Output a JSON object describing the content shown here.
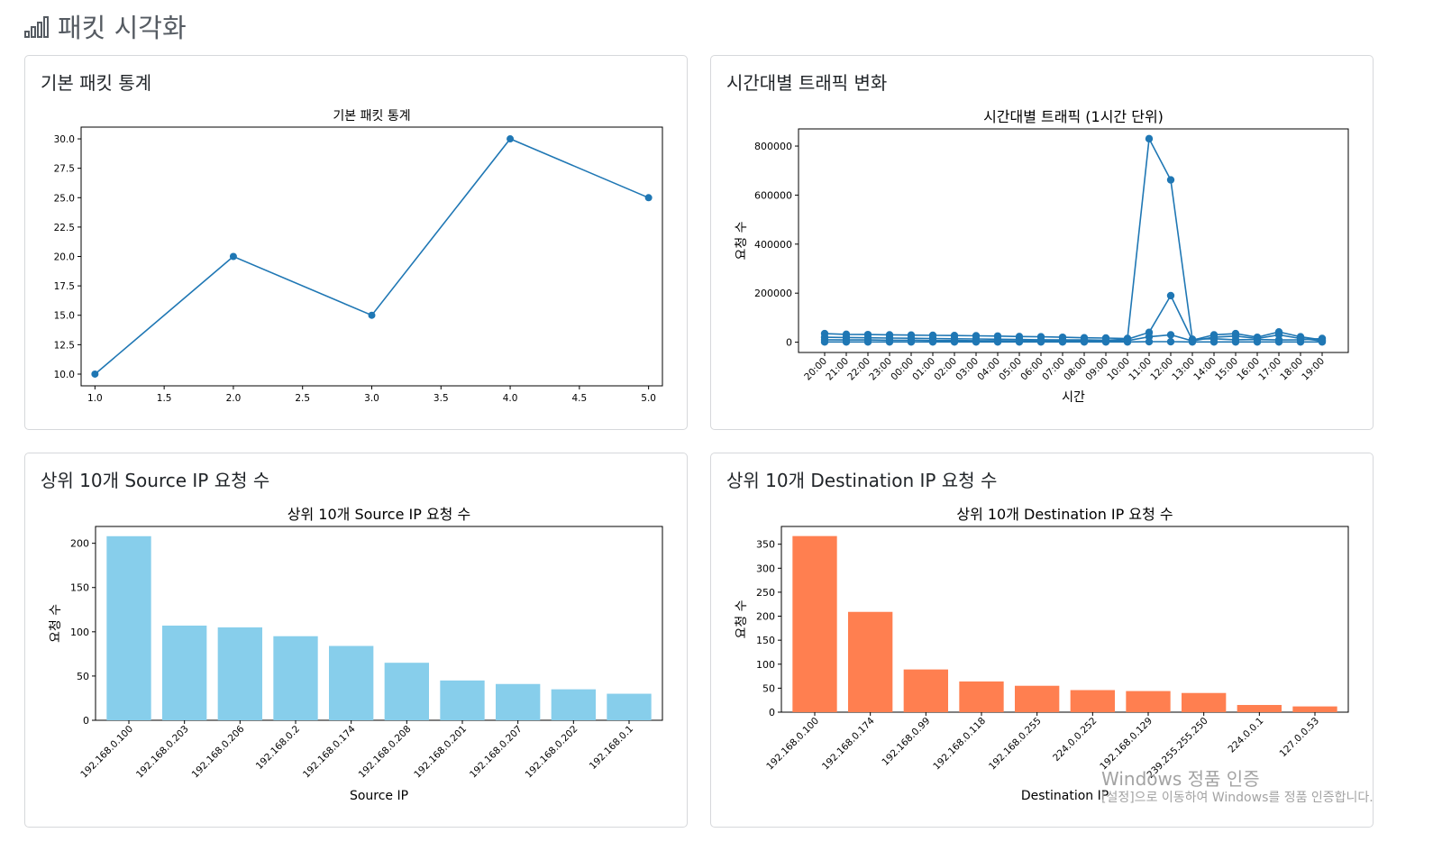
{
  "page": {
    "title": "패킷 시각화",
    "icon": "bar-chart-icon"
  },
  "cards": [
    {
      "title": "기본 패킷 통계"
    },
    {
      "title": "시간대별 트래픽 변화"
    },
    {
      "title": "상위 10개 Source IP 요청 수"
    },
    {
      "title": "상위 10개 Destination IP 요청 수"
    }
  ],
  "watermark": {
    "line1": "Windows 정품 인증",
    "line2": "[설정]으로 이동하여 Windows를 정품 인증합니다."
  },
  "chart_data": [
    {
      "type": "line",
      "title": "기본 패킷 통계",
      "xlabel": "",
      "ylabel": "",
      "x": [
        1,
        2,
        3,
        4,
        5
      ],
      "y": [
        10,
        20,
        15,
        30,
        25
      ],
      "xlim": [
        0.9,
        5.1
      ],
      "ylim": [
        9.0,
        31.0
      ],
      "xticks": [
        1.0,
        1.5,
        2.0,
        2.5,
        3.0,
        3.5,
        4.0,
        4.5,
        5.0
      ],
      "yticks": [
        10.0,
        12.5,
        15.0,
        17.5,
        20.0,
        22.5,
        25.0,
        27.5,
        30.0
      ],
      "color": "#1f77b4",
      "markers": true,
      "grid": false
    },
    {
      "type": "line",
      "title": "시간대별 트래픽 (1시간 단위)",
      "xlabel": "시간",
      "ylabel": "요청 수",
      "categories": [
        "20:00",
        "21:00",
        "22:00",
        "23:00",
        "00:00",
        "01:00",
        "02:00",
        "03:00",
        "04:00",
        "05:00",
        "06:00",
        "07:00",
        "08:00",
        "09:00",
        "10:00",
        "11:00",
        "12:00",
        "13:00",
        "14:00",
        "15:00",
        "16:00",
        "17:00",
        "18:00",
        "19:00"
      ],
      "ylim": [
        -42000,
        870000
      ],
      "yticks": [
        0,
        200000,
        400000,
        600000,
        800000
      ],
      "color": "#1f77b4",
      "markers": true,
      "grid": false,
      "series": [
        {
          "values": [
            35000,
            32000,
            31000,
            30000,
            29000,
            28000,
            27000,
            26000,
            25000,
            23000,
            22000,
            20000,
            18000,
            17000,
            15000,
            830000,
            662000,
            12000,
            14000,
            10000,
            11000,
            9000,
            10000,
            15000
          ]
        },
        {
          "values": [
            20000,
            19000,
            18000,
            17000,
            16000,
            15000,
            14000,
            13000,
            12000,
            11000,
            10000,
            9000,
            9000,
            8000,
            12000,
            40000,
            190000,
            8000,
            30000,
            35000,
            20000,
            42000,
            22000,
            9000
          ]
        },
        {
          "values": [
            10000,
            9000,
            9000,
            8000,
            8000,
            7000,
            7000,
            6000,
            6000,
            5000,
            5000,
            5000,
            5000,
            5000,
            6000,
            22000,
            30000,
            5000,
            20000,
            25000,
            15000,
            30000,
            15000,
            5000
          ]
        },
        {
          "values": [
            1000,
            1000,
            1000,
            1000,
            1000,
            1000,
            1000,
            1000,
            1000,
            1000,
            1000,
            1000,
            1000,
            1000,
            1000,
            2000,
            2000,
            1000,
            1000,
            1000,
            1000,
            1000,
            1000,
            1000
          ]
        }
      ]
    },
    {
      "type": "bar",
      "title": "상위 10개 Source IP 요청 수",
      "xlabel": "Source IP",
      "ylabel": "요청 수",
      "categories": [
        "192.168.0.100",
        "192.168.0.203",
        "192.168.0.206",
        "192.168.0.2",
        "192.168.0.174",
        "192.168.0.208",
        "192.168.0.201",
        "192.168.0.207",
        "192.168.0.202",
        "192.168.0.1"
      ],
      "values": [
        208,
        107,
        105,
        95,
        84,
        65,
        45,
        41,
        35,
        30
      ],
      "ylim": [
        0,
        219
      ],
      "yticks": [
        0,
        50,
        100,
        150,
        200
      ],
      "color": "#87ceeb",
      "grid": false
    },
    {
      "type": "bar",
      "title": "상위 10개 Destination IP 요청 수",
      "xlabel": "Destination IP",
      "ylabel": "요청 수",
      "categories": [
        "192.168.0.100",
        "192.168.0.174",
        "192.168.0.99",
        "192.168.0.118",
        "192.168.0.255",
        "224.0.0.252",
        "192.168.0.129",
        "239.255.255.250",
        "224.0.0.1",
        "127.0.0.53"
      ],
      "values": [
        367,
        209,
        89,
        64,
        55,
        46,
        44,
        40,
        15,
        12
      ],
      "ylim": [
        0,
        387
      ],
      "yticks": [
        0,
        50,
        100,
        150,
        200,
        250,
        300,
        350
      ],
      "color": "#ff7f50",
      "grid": false
    }
  ]
}
